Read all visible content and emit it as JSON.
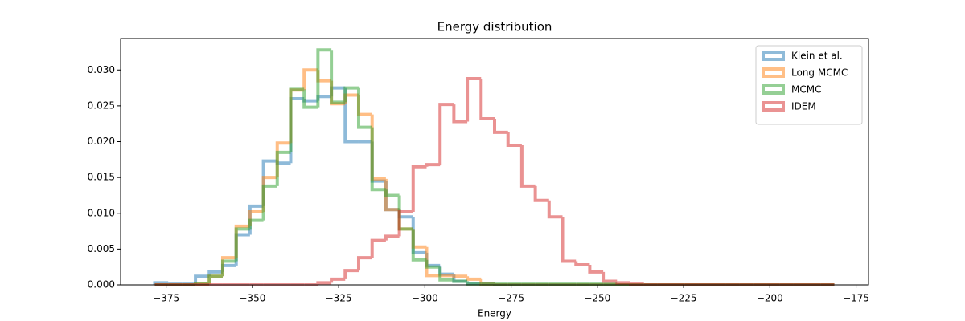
{
  "chart_data": {
    "type": "histogram",
    "title": "Energy distribution",
    "x_label": "Energy",
    "bins": [
      -378.3,
      -374.4,
      -370.4,
      -366.5,
      -362.5,
      -358.6,
      -354.7,
      -350.7,
      -346.8,
      -342.8,
      -338.9,
      -335.0,
      -331.0,
      -327.1,
      -323.1,
      -319.2,
      -315.3,
      -311.3,
      -307.4,
      -303.4,
      -299.5,
      -295.6,
      -291.6,
      -287.7,
      -283.7,
      -279.8,
      -275.9,
      -271.9,
      -268.0,
      -264.0,
      -260.1,
      -256.2,
      -252.2,
      -248.3,
      -244.3,
      -240.4,
      -236.5,
      -232.5,
      -228.6,
      -224.6,
      -220.7,
      -216.8,
      -212.8,
      -208.9,
      -204.9,
      -201.0,
      -197.1,
      -193.1,
      -189.2,
      -185.2,
      -181.3
    ],
    "series": [
      {
        "name": "Klein et al.",
        "color": "#1f77b4",
        "values": [
          0.0003,
          0.0001,
          0.0001,
          0.0012,
          0.0018,
          0.0027,
          0.007,
          0.011,
          0.0173,
          0.017,
          0.026,
          0.0257,
          0.0263,
          0.0275,
          0.02,
          0.02,
          0.0145,
          0.0105,
          0.0095,
          0.0045,
          0.0027,
          0.0015,
          0.0005,
          0.0002,
          0.0002,
          0,
          0,
          0,
          0,
          0,
          0,
          0,
          0,
          0,
          0,
          0,
          0,
          0,
          0,
          0,
          0,
          0,
          0,
          0,
          0,
          0,
          0,
          0,
          0,
          0
        ]
      },
      {
        "name": "Long MCMC",
        "color": "#ff7f0e",
        "values": [
          0,
          0,
          0,
          0.0001,
          0.0012,
          0.0038,
          0.0082,
          0.0102,
          0.015,
          0.0198,
          0.0272,
          0.03,
          0.0285,
          0.0253,
          0.0265,
          0.0238,
          0.0148,
          0.0105,
          0.0078,
          0.0053,
          0.0013,
          0.0013,
          0.0012,
          0.0008,
          0.0001,
          0,
          0,
          0,
          0,
          0,
          0,
          0,
          0,
          0,
          0,
          0,
          0,
          0,
          0,
          0,
          0,
          0,
          0,
          0,
          0,
          0,
          0,
          0,
          0,
          0
        ]
      },
      {
        "name": "MCMC",
        "color": "#2ca02c",
        "values": [
          0,
          0,
          0,
          0.0002,
          0.0012,
          0.0033,
          0.0078,
          0.009,
          0.0138,
          0.0185,
          0.0273,
          0.0248,
          0.0328,
          0.0255,
          0.0275,
          0.022,
          0.0133,
          0.0125,
          0.0078,
          0.0035,
          0.0025,
          0.0007,
          0.0005,
          0.0001,
          0.0001,
          0.0001,
          0.0001,
          0.0001,
          0.0001,
          0.0001,
          0.0001,
          0.0001,
          0.0001,
          0.0001,
          0,
          0,
          0,
          0,
          0,
          0,
          0,
          0,
          0,
          0,
          0,
          0,
          0,
          0,
          0,
          0
        ]
      },
      {
        "name": "IDEM",
        "color": "#d62728",
        "values": [
          0,
          0,
          0,
          0,
          0,
          0,
          0,
          0,
          0,
          0,
          0,
          0,
          0.0003,
          0.0008,
          0.002,
          0.0038,
          0.0062,
          0.0068,
          0.0102,
          0.0165,
          0.0168,
          0.0252,
          0.0228,
          0.0288,
          0.0232,
          0.0213,
          0.0195,
          0.0138,
          0.0118,
          0.0095,
          0.0033,
          0.0028,
          0.0018,
          0.0005,
          0.0003,
          0.0001,
          0,
          0,
          0,
          0,
          0,
          0,
          0,
          0,
          0,
          0,
          0,
          0,
          0,
          0
        ]
      }
    ],
    "xlim": [
      -388.2,
      -171.4
    ],
    "ylim": [
      0,
      0.0344
    ],
    "xticks": [
      {
        "value": -375,
        "label": "−375"
      },
      {
        "value": -350,
        "label": "−350"
      },
      {
        "value": -325,
        "label": "−325"
      },
      {
        "value": -300,
        "label": "−300"
      },
      {
        "value": -275,
        "label": "−275"
      },
      {
        "value": -250,
        "label": "−250"
      },
      {
        "value": -225,
        "label": "−225"
      },
      {
        "value": -200,
        "label": "−200"
      },
      {
        "value": -175,
        "label": "−175"
      }
    ],
    "yticks": [
      {
        "value": 0,
        "label": "0.000"
      },
      {
        "value": 0.005,
        "label": "0.005"
      },
      {
        "value": 0.01,
        "label": "0.010"
      },
      {
        "value": 0.015,
        "label": "0.015"
      },
      {
        "value": 0.02,
        "label": "0.020"
      },
      {
        "value": 0.025,
        "label": "0.025"
      },
      {
        "value": 0.03,
        "label": "0.030"
      }
    ],
    "legend": "upper right",
    "grid": false
  }
}
